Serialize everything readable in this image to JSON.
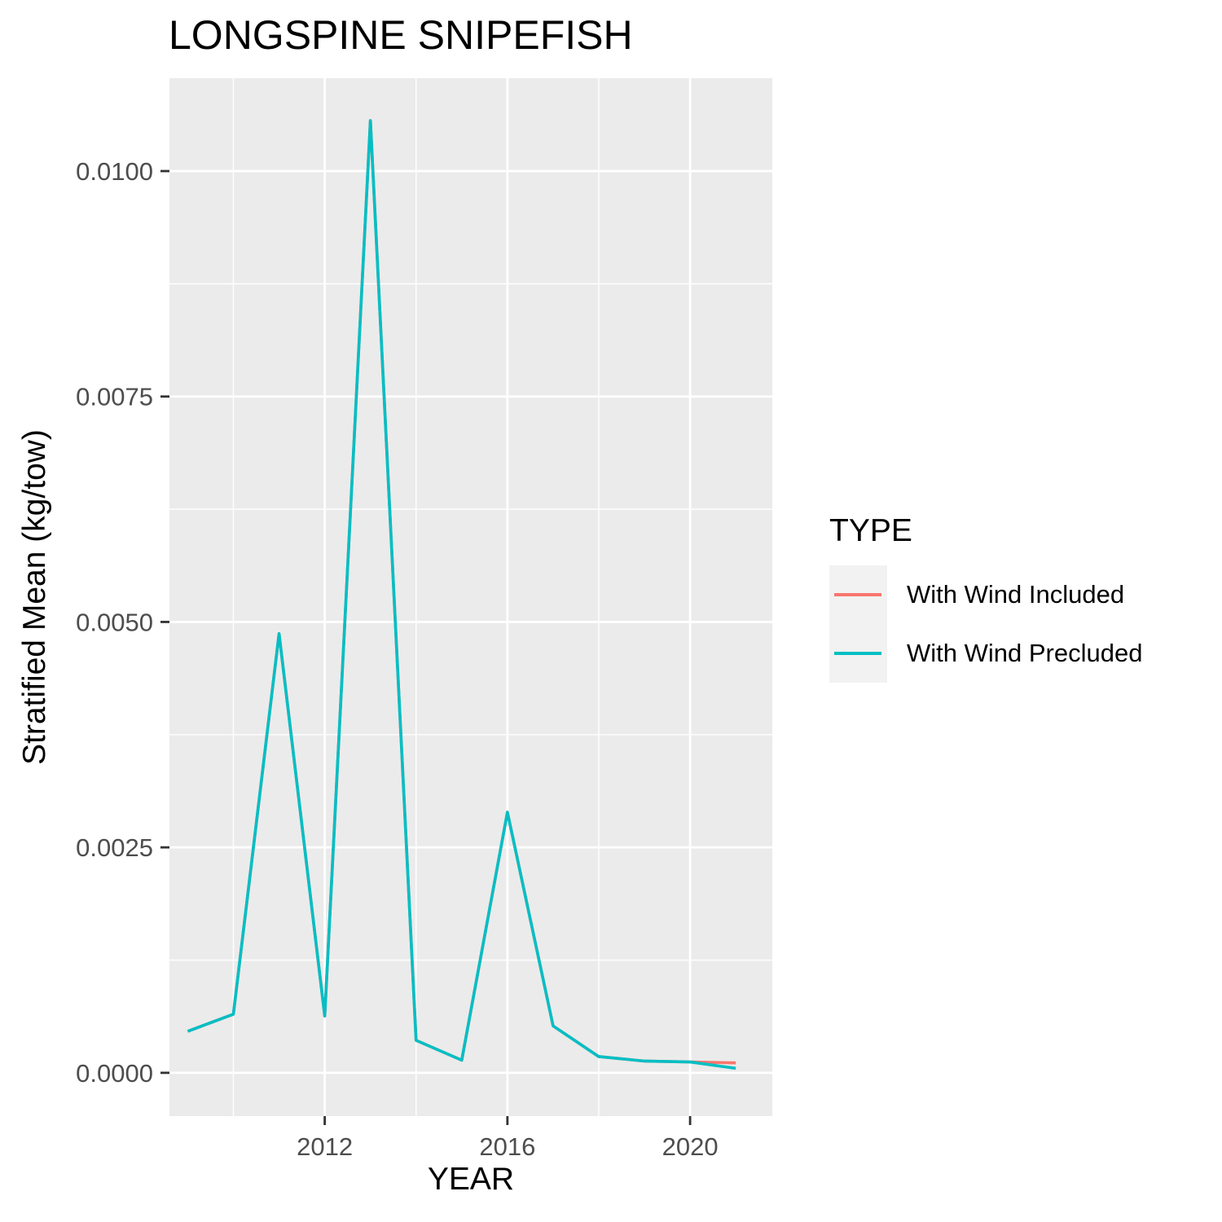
{
  "chart_data": {
    "type": "line",
    "title": "LONGSPINE SNIPEFISH",
    "xlabel": "YEAR",
    "ylabel": "Stratified Mean (kg/tow)",
    "xlim": [
      2008.6,
      2021.8
    ],
    "ylim": [
      -0.00048,
      0.01103
    ],
    "x_ticks": [
      2012,
      2016,
      2020
    ],
    "x_tick_labels": [
      "2012",
      "2016",
      "2020"
    ],
    "y_ticks": [
      0,
      0.0025,
      0.005,
      0.0075,
      0.01
    ],
    "y_tick_labels": [
      "0.0000",
      "0.0025",
      "0.0050",
      "0.0075",
      "0.0100"
    ],
    "grid": true,
    "legend_title": "TYPE",
    "legend_position": "right",
    "series": [
      {
        "name": "With Wind Included",
        "color": "#F8766D",
        "x": [
          2009,
          2010,
          2011,
          2012,
          2013,
          2014,
          2015,
          2016,
          2017,
          2018,
          2019,
          2020,
          2021
        ],
        "values": [
          0.00046,
          0.00065,
          0.00487,
          0.00063,
          0.01056,
          0.00036,
          0.00014,
          0.00289,
          0.00052,
          0.00018,
          0.00013,
          0.00012,
          0.00011
        ]
      },
      {
        "name": "With Wind Precluded",
        "color": "#00BFC4",
        "x": [
          2009,
          2010,
          2011,
          2012,
          2013,
          2014,
          2015,
          2016,
          2017,
          2018,
          2019,
          2020,
          2021
        ],
        "values": [
          0.00046,
          0.00065,
          0.00487,
          0.00063,
          0.01056,
          0.00036,
          0.00014,
          0.00289,
          0.00052,
          0.00018,
          0.00013,
          0.00012,
          5e-05
        ]
      }
    ]
  }
}
